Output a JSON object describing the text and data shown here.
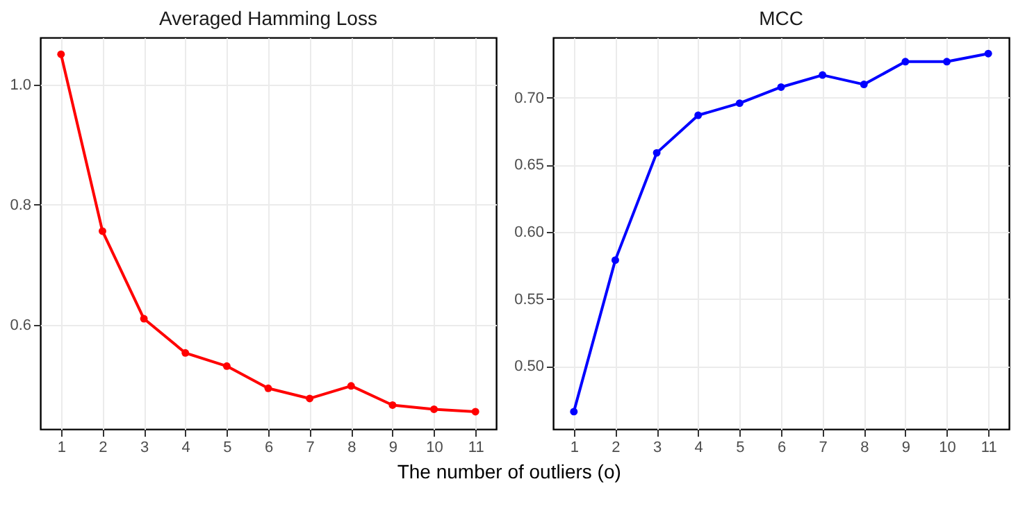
{
  "chart_data": [
    {
      "type": "line",
      "title": "Averaged Hamming Loss",
      "xlabel": "The number of outliers (o)",
      "categories": [
        "1",
        "2",
        "3",
        "4",
        "5",
        "6",
        "7",
        "8",
        "9",
        "10",
        "11"
      ],
      "series": [
        {
          "color": "#ff0000",
          "values": [
            1.051,
            0.756,
            0.61,
            0.553,
            0.531,
            0.494,
            0.477,
            0.498,
            0.466,
            0.459,
            0.455
          ]
        }
      ],
      "ylim": [
        0.426,
        1.079
      ],
      "yticks": [
        {
          "value": 0.6,
          "label": "0.6"
        },
        {
          "value": 0.8,
          "label": "0.8"
        },
        {
          "value": 1.0,
          "label": "1.0"
        }
      ],
      "grid": true,
      "marker": "circle",
      "line_style": "solid"
    },
    {
      "type": "line",
      "title": "MCC",
      "categories": [
        "1",
        "2",
        "3",
        "4",
        "5",
        "6",
        "7",
        "8",
        "9",
        "10",
        "11"
      ],
      "series": [
        {
          "color": "#0000ff",
          "values": [
            0.466,
            0.579,
            0.659,
            0.687,
            0.696,
            0.708,
            0.717,
            0.71,
            0.727,
            0.727,
            0.733
          ]
        }
      ],
      "ylim": [
        0.453,
        0.745
      ],
      "yticks": [
        {
          "value": 0.5,
          "label": "0.50"
        },
        {
          "value": 0.55,
          "label": "0.55"
        },
        {
          "value": 0.6,
          "label": "0.60"
        },
        {
          "value": 0.65,
          "label": "0.65"
        },
        {
          "value": 0.7,
          "label": "0.70"
        }
      ],
      "grid": true,
      "marker": "circle",
      "line_style": "solid"
    }
  ]
}
